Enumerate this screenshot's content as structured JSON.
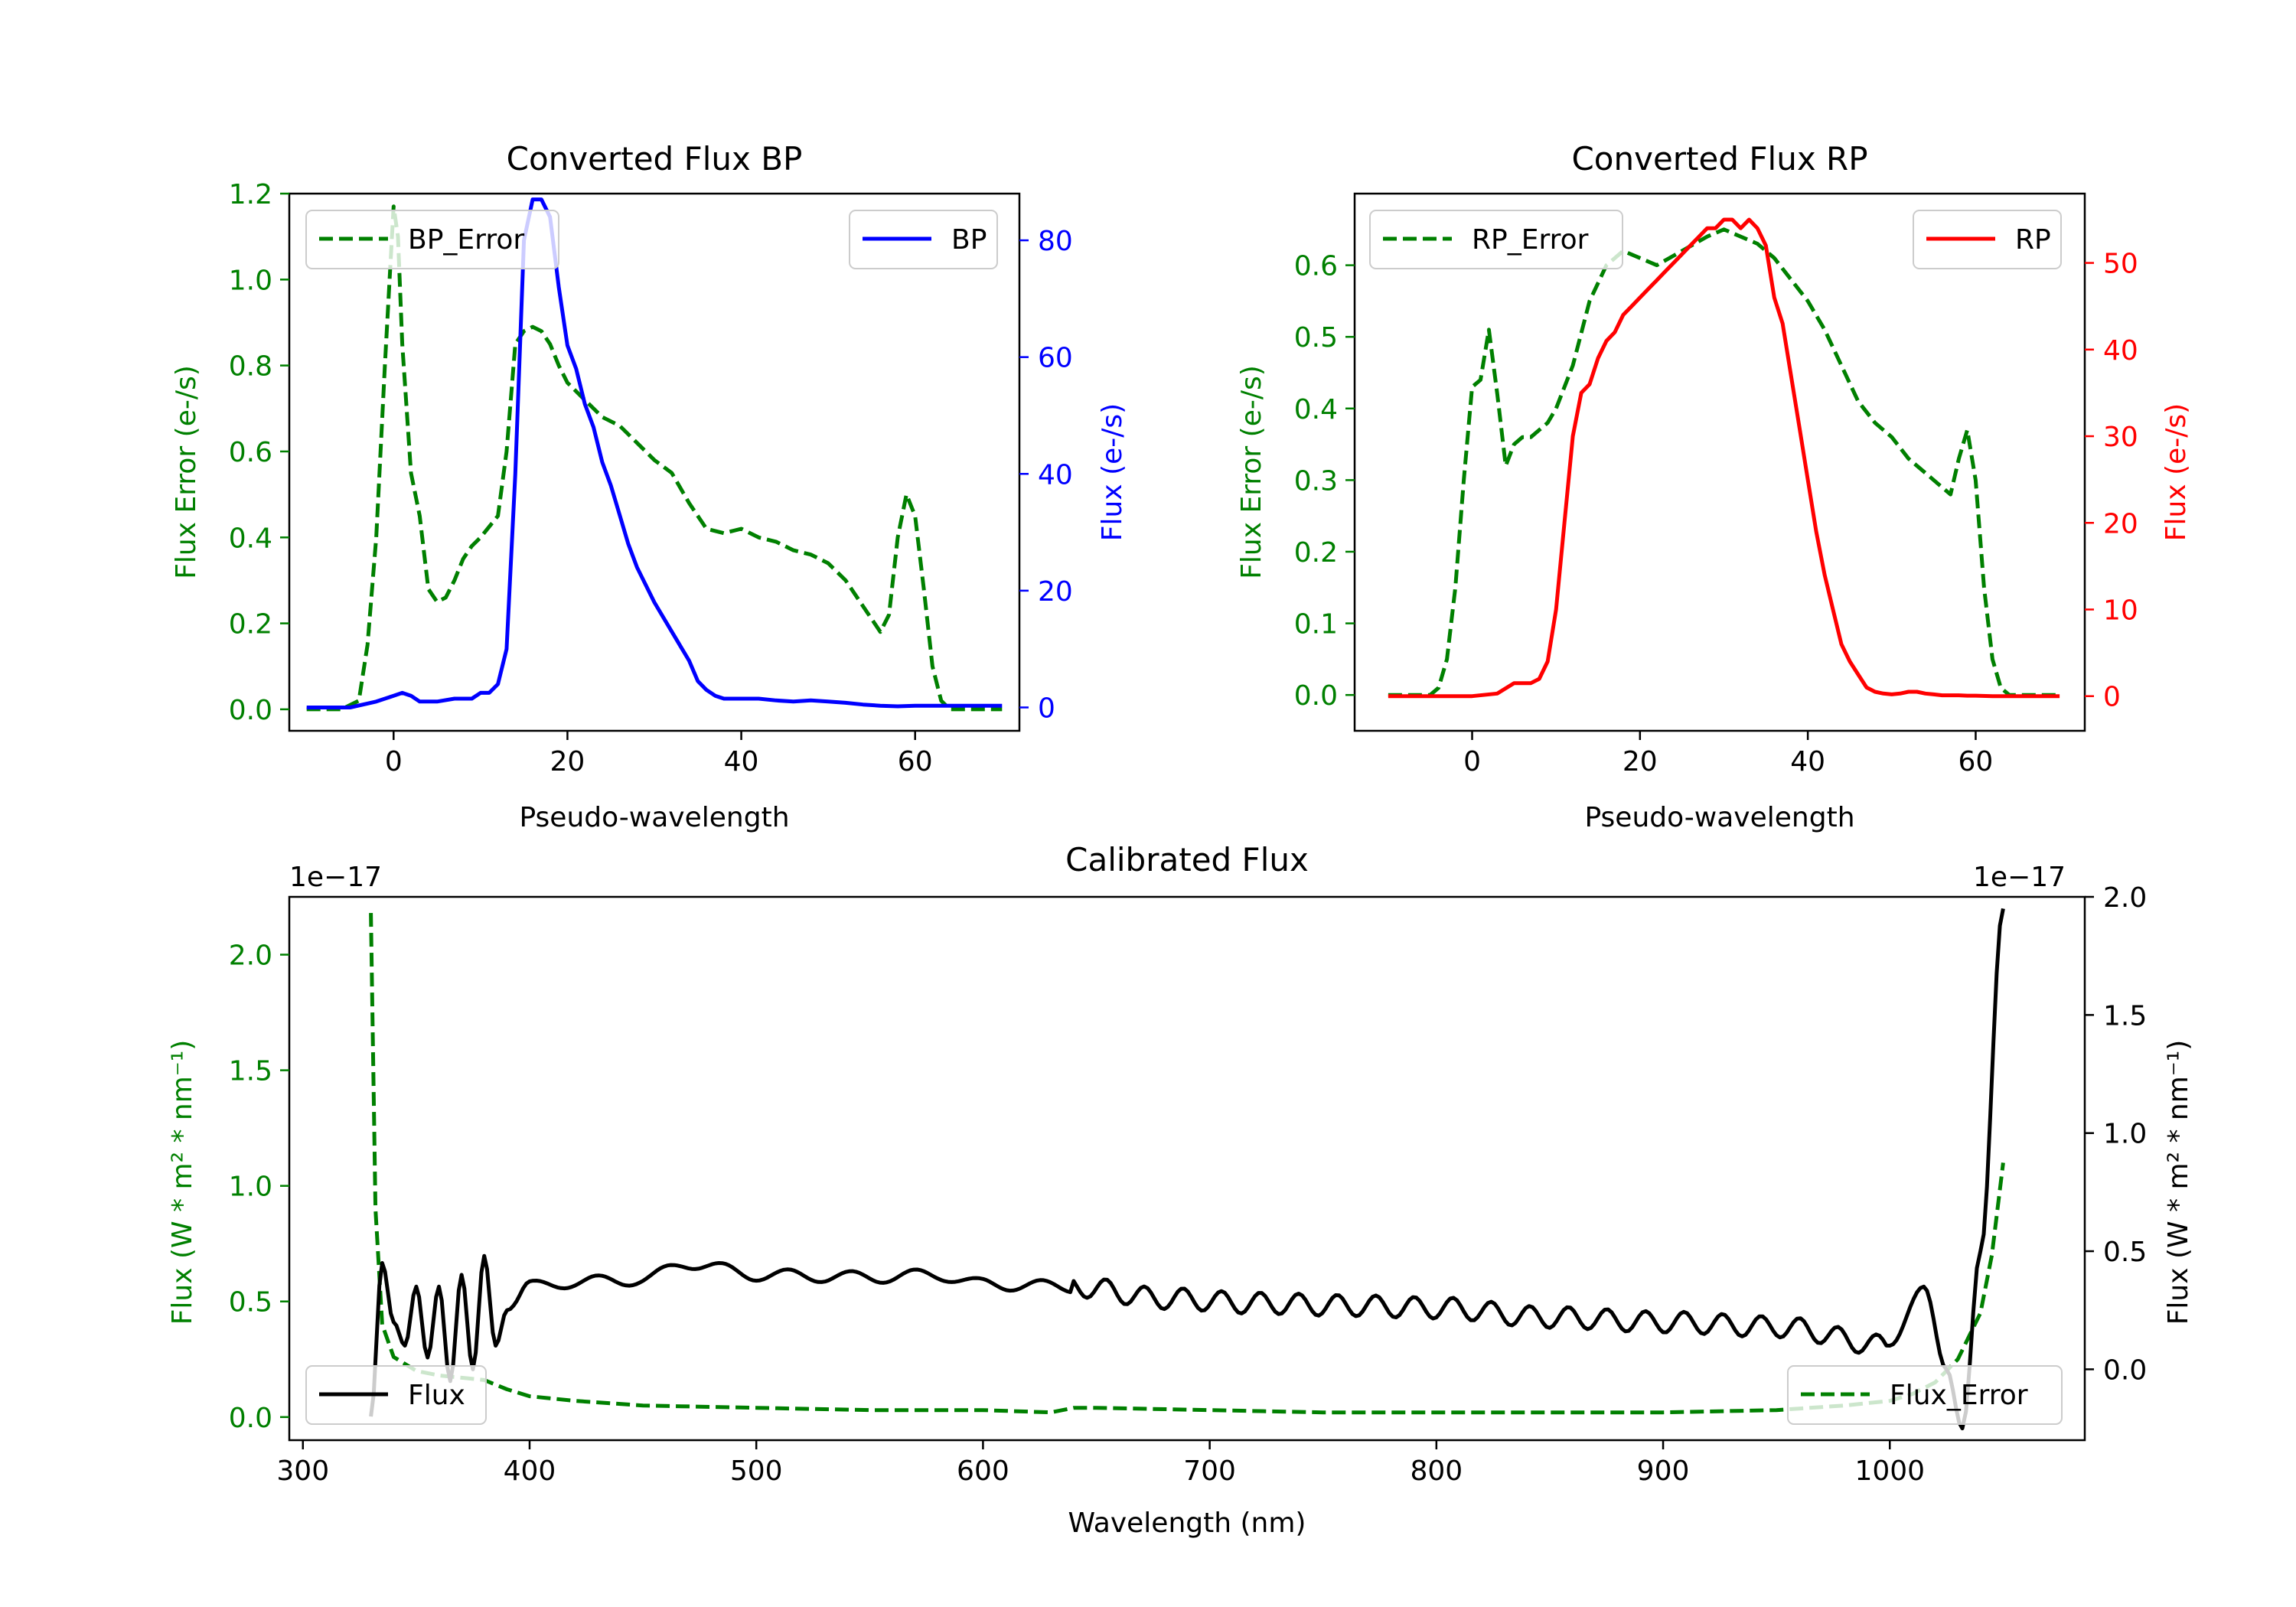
{
  "chart_data": [
    {
      "type": "line",
      "title": "Converted Flux BP",
      "xlabel": "Pseudo-wavelength",
      "ylabel_left": "Flux Error (e-/s)",
      "ylabel_right": "Flux (e-/s)",
      "xlim": [
        -12,
        72
      ],
      "ylim_left": [
        -0.05,
        1.2
      ],
      "ylim_right": [
        -4,
        88
      ],
      "x_ticks": [
        "0",
        "20",
        "40",
        "60"
      ],
      "y_ticks_left": [
        "0.0",
        "0.2",
        "0.4",
        "0.6",
        "0.8",
        "1.0",
        "1.2"
      ],
      "y_ticks_right": [
        "0",
        "20",
        "40",
        "60",
        "80"
      ],
      "legend_left": "BP_Error",
      "legend_right": "BP",
      "colors": {
        "error": "#008000",
        "flux": "#0000ff",
        "left_axis": "#008000",
        "right_axis": "#0000ff"
      },
      "series": [
        {
          "name": "BP_Error",
          "axis": "left",
          "style": "dashed",
          "x": [
            -10,
            -6,
            -4,
            -3,
            -2,
            -1,
            0,
            0.5,
            1,
            2,
            3,
            4,
            5,
            6,
            7,
            8,
            9,
            10,
            12,
            13,
            14,
            15,
            16,
            17,
            18,
            19,
            20,
            22,
            24,
            26,
            28,
            30,
            32,
            34,
            36,
            38,
            40,
            42,
            44,
            46,
            48,
            50,
            52,
            54,
            56,
            57,
            58,
            59,
            60,
            61,
            62,
            63,
            64,
            66,
            70
          ],
          "y": [
            0.0,
            0.0,
            0.02,
            0.15,
            0.4,
            0.8,
            1.17,
            1.1,
            0.85,
            0.55,
            0.45,
            0.28,
            0.25,
            0.26,
            0.3,
            0.35,
            0.38,
            0.4,
            0.45,
            0.6,
            0.85,
            0.88,
            0.89,
            0.88,
            0.85,
            0.8,
            0.76,
            0.72,
            0.68,
            0.66,
            0.62,
            0.58,
            0.55,
            0.48,
            0.42,
            0.41,
            0.42,
            0.4,
            0.39,
            0.37,
            0.36,
            0.34,
            0.3,
            0.24,
            0.18,
            0.22,
            0.4,
            0.5,
            0.45,
            0.28,
            0.1,
            0.02,
            0.0,
            0.0,
            0.0
          ]
        },
        {
          "name": "BP",
          "axis": "right",
          "style": "solid",
          "x": [
            -10,
            -5,
            -2,
            0,
            1,
            2,
            3,
            5,
            7,
            8,
            9,
            10,
            11,
            12,
            13,
            14,
            15,
            16,
            17,
            18,
            19,
            20,
            21,
            22,
            23,
            24,
            25,
            26,
            27,
            28,
            30,
            32,
            34,
            35,
            36,
            37,
            38,
            40,
            42,
            44,
            46,
            48,
            50,
            52,
            54,
            56,
            58,
            60,
            62,
            65,
            70
          ],
          "y": [
            0,
            0,
            1,
            2,
            2.5,
            2,
            1,
            1,
            1.5,
            1.5,
            1.5,
            2.5,
            2.5,
            4,
            10,
            40,
            80,
            87,
            87,
            84,
            72,
            62,
            58,
            52,
            48,
            42,
            38,
            33,
            28,
            24,
            18,
            13,
            8,
            4.5,
            3,
            2,
            1.5,
            1.5,
            1.5,
            1.2,
            1,
            1.2,
            1,
            0.8,
            0.5,
            0.3,
            0.2,
            0.3,
            0.3,
            0.3,
            0.3
          ]
        }
      ]
    },
    {
      "type": "line",
      "title": "Converted Flux RP",
      "xlabel": "Pseudo-wavelength",
      "ylabel_left": "Flux Error (e-/s)",
      "ylabel_right": "Flux (e-/s)",
      "xlim": [
        -14,
        73
      ],
      "ylim_left": [
        -0.05,
        0.7
      ],
      "ylim_right": [
        -4,
        58
      ],
      "x_ticks": [
        "0",
        "20",
        "40",
        "60"
      ],
      "y_ticks_left": [
        "0.0",
        "0.1",
        "0.2",
        "0.3",
        "0.4",
        "0.5",
        "0.6"
      ],
      "y_ticks_right": [
        "0",
        "10",
        "20",
        "30",
        "40",
        "50"
      ],
      "legend_left": "RP_Error",
      "legend_right": "RP",
      "colors": {
        "error": "#008000",
        "flux": "#ff0000",
        "left_axis": "#008000",
        "right_axis": "#ff0000"
      },
      "series": [
        {
          "name": "RP_Error",
          "axis": "left",
          "style": "dashed",
          "x": [
            -10,
            -5,
            -4,
            -3,
            -2,
            -1,
            0,
            1,
            2,
            3,
            4,
            5,
            6,
            7,
            8,
            9,
            10,
            12,
            14,
            16,
            18,
            20,
            22,
            25,
            28,
            30,
            32,
            34,
            36,
            38,
            40,
            42,
            44,
            46,
            48,
            50,
            52,
            54,
            56,
            57,
            58,
            59,
            60,
            61,
            62,
            63,
            64,
            66,
            70
          ],
          "y": [
            0.0,
            0.0,
            0.01,
            0.05,
            0.15,
            0.3,
            0.43,
            0.44,
            0.51,
            0.42,
            0.32,
            0.35,
            0.36,
            0.36,
            0.37,
            0.38,
            0.4,
            0.46,
            0.55,
            0.6,
            0.62,
            0.61,
            0.6,
            0.62,
            0.64,
            0.65,
            0.64,
            0.63,
            0.61,
            0.58,
            0.55,
            0.51,
            0.46,
            0.41,
            0.38,
            0.36,
            0.33,
            0.31,
            0.29,
            0.28,
            0.33,
            0.37,
            0.3,
            0.15,
            0.05,
            0.01,
            0.0,
            0.0,
            0.0
          ]
        },
        {
          "name": "RP",
          "axis": "right",
          "style": "solid",
          "x": [
            -10,
            0,
            3,
            5,
            7,
            8,
            9,
            10,
            11,
            12,
            13,
            14,
            15,
            16,
            17,
            18,
            19,
            20,
            21,
            22,
            23,
            24,
            25,
            26,
            27,
            28,
            29,
            30,
            31,
            32,
            33,
            34,
            35,
            36,
            37,
            38,
            39,
            40,
            41,
            42,
            43,
            44,
            45,
            46,
            47,
            48,
            49,
            50,
            51,
            52,
            53,
            54,
            55,
            56,
            57,
            58,
            59,
            60,
            62,
            65,
            70
          ],
          "y": [
            0,
            0,
            0.3,
            1.5,
            1.5,
            2,
            4,
            10,
            20,
            30,
            35,
            36,
            39,
            41,
            42,
            44,
            45,
            46,
            47,
            48,
            49,
            50,
            51,
            52,
            53,
            54,
            54,
            55,
            55,
            54,
            55,
            54,
            52,
            46,
            43,
            37,
            31,
            25,
            19,
            14,
            10,
            6,
            4,
            2.5,
            1,
            0.5,
            0.3,
            0.2,
            0.3,
            0.5,
            0.5,
            0.3,
            0.2,
            0.1,
            0.1,
            0.1,
            0.05,
            0.05,
            0,
            0,
            0
          ]
        }
      ]
    },
    {
      "type": "line",
      "title": "Calibrated Flux",
      "xlabel": "Wavelength (nm)",
      "ylabel_left": "Flux (W * m² * nm⁻¹)",
      "ylabel_right": "Flux (W * m² * nm⁻¹)",
      "offset_left": "1e−17",
      "offset_right": "1e−17",
      "xlim": [
        294,
        1086
      ],
      "ylim_left": [
        -0.1,
        2.25
      ],
      "ylim_right": [
        -0.3,
        2.0
      ],
      "x_ticks": [
        "300",
        "400",
        "500",
        "600",
        "700",
        "800",
        "900",
        "1000"
      ],
      "y_ticks_left": [
        "0.0",
        "0.5",
        "1.0",
        "1.5",
        "2.0"
      ],
      "y_ticks_right": [
        "0.0",
        "0.5",
        "1.0",
        "1.5",
        "2.0"
      ],
      "legend_left": "Flux",
      "legend_right": "Flux_Error",
      "colors": {
        "error": "#008000",
        "flux": "#000000",
        "left_axis": "#008000",
        "right_axis": "#000000"
      },
      "series": [
        {
          "name": "Flux_Error",
          "axis": "left",
          "style": "dashed",
          "x": [
            330,
            332,
            335,
            340,
            350,
            360,
            370,
            380,
            390,
            400,
            420,
            450,
            500,
            550,
            600,
            630,
            640,
            650,
            700,
            750,
            800,
            850,
            900,
            950,
            980,
            1000,
            1010,
            1020,
            1030,
            1040,
            1045,
            1050
          ],
          "y": [
            2.18,
            0.9,
            0.4,
            0.26,
            0.2,
            0.18,
            0.17,
            0.16,
            0.12,
            0.09,
            0.07,
            0.05,
            0.04,
            0.03,
            0.03,
            0.02,
            0.04,
            0.04,
            0.03,
            0.02,
            0.02,
            0.02,
            0.02,
            0.03,
            0.05,
            0.07,
            0.1,
            0.15,
            0.25,
            0.45,
            0.7,
            1.1
          ]
        },
        {
          "name": "Flux",
          "axis": "right",
          "style": "solid",
          "x_start": 330,
          "x_end": 1050,
          "generated": "oscillating",
          "x": [
            330,
            335,
            340,
            345,
            350,
            355,
            360,
            365,
            370,
            375,
            380,
            385,
            390,
            400,
            420,
            450,
            470,
            500,
            550,
            580,
            600,
            640,
            680,
            720,
            760,
            800,
            850,
            900,
            950,
            1000,
            1015,
            1025,
            1032,
            1040,
            1050
          ],
          "y": [
            -0.2,
            0.45,
            0.2,
            0.1,
            0.35,
            0.05,
            0.35,
            -0.05,
            0.4,
            0.0,
            0.48,
            0.1,
            0.25,
            0.35,
            0.37,
            0.38,
            0.45,
            0.4,
            0.39,
            0.4,
            0.36,
            0.35,
            0.3,
            0.28,
            0.27,
            0.26,
            0.22,
            0.2,
            0.18,
            0.1,
            0.35,
            0.0,
            -0.25,
            0.5,
            1.95
          ]
        }
      ]
    }
  ]
}
